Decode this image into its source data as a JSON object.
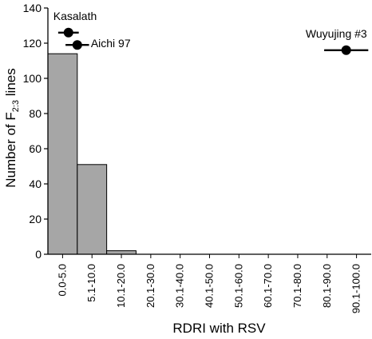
{
  "chart_data": {
    "type": "bar",
    "categories": [
      "0.0-5.0",
      "5.1-10.0",
      "10.1-20.0",
      "20.1-30.0",
      "30.1-40.0",
      "40.1-50.0",
      "50.1-60.0",
      "60.1-70.0",
      "70.1-80.0",
      "80.1-90.0",
      "90.1-100.0"
    ],
    "values": [
      114,
      51,
      2,
      0,
      0,
      0,
      0,
      0,
      0,
      0,
      0
    ],
    "xlabel": "RDRI with RSV",
    "ylabel_prefix": "Number of F",
    "ylabel_subscript": "2:3",
    "ylabel_suffix": " lines",
    "ylim": [
      0,
      140
    ],
    "yticks": [
      0,
      20,
      40,
      60,
      80,
      100,
      120,
      140
    ],
    "bar_color": "#a6a6a6",
    "grid": false,
    "annotations": [
      {
        "label": "Kasalath",
        "x": 0.7,
        "y": 126,
        "xerr_low": 0.35,
        "xerr_high": 0.35
      },
      {
        "label": "Aichi 97",
        "x": 1.0,
        "y": 119,
        "xerr_low": 0.4,
        "xerr_high": 0.4
      },
      {
        "label": "Wuyujing #3",
        "x": 10.15,
        "y": 116,
        "xerr_low": 0.75,
        "xerr_high": 0.75
      }
    ]
  }
}
